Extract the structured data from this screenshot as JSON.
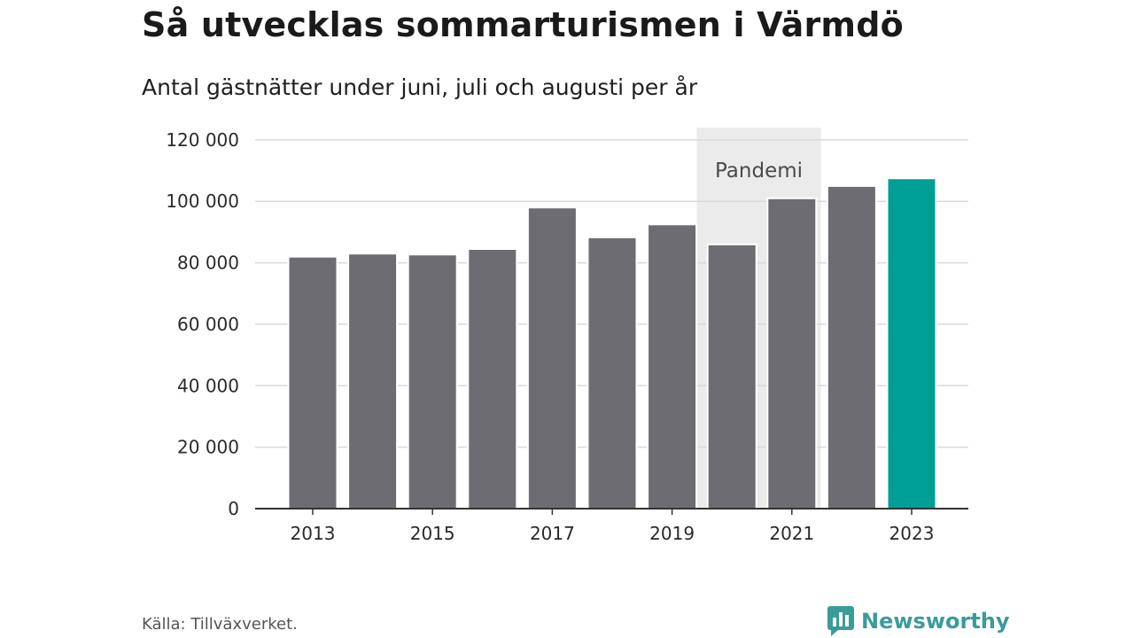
{
  "title": "Så utvecklas sommarturismen i Värmdö",
  "subtitle": "Antal gästnätter under juni, juli och augusti per år",
  "source": "Källa: Tillväxverket.",
  "brand": {
    "name": "Newsworthy",
    "icon": "newsworthy-logo-icon",
    "color": "#3a9c98"
  },
  "colors": {
    "bar": "#6d6c73",
    "highlight": "#009f96",
    "pandemic_band": "#ebebeb",
    "grid": "#d9d9d9"
  },
  "chart_data": {
    "type": "bar",
    "categories": [
      "2013",
      "2014",
      "2015",
      "2016",
      "2017",
      "2018",
      "2019",
      "2020",
      "2021",
      "2022",
      "2023"
    ],
    "values": [
      82000,
      83000,
      82700,
      84500,
      98000,
      88300,
      92500,
      86000,
      101000,
      105000,
      107500
    ],
    "highlight_category": "2023",
    "x_tick_labels": [
      "2013",
      "2015",
      "2017",
      "2019",
      "2021",
      "2023"
    ],
    "y_ticks": [
      0,
      20000,
      40000,
      60000,
      80000,
      100000,
      120000
    ],
    "y_tick_labels": [
      "0",
      "20 000",
      "40 000",
      "60 000",
      "80 000",
      "100 000",
      "120 000"
    ],
    "ylim": [
      0,
      124000
    ],
    "grid": true,
    "annotations": [
      {
        "label": "Pandemi",
        "from": "2020",
        "to": "2021"
      }
    ]
  }
}
